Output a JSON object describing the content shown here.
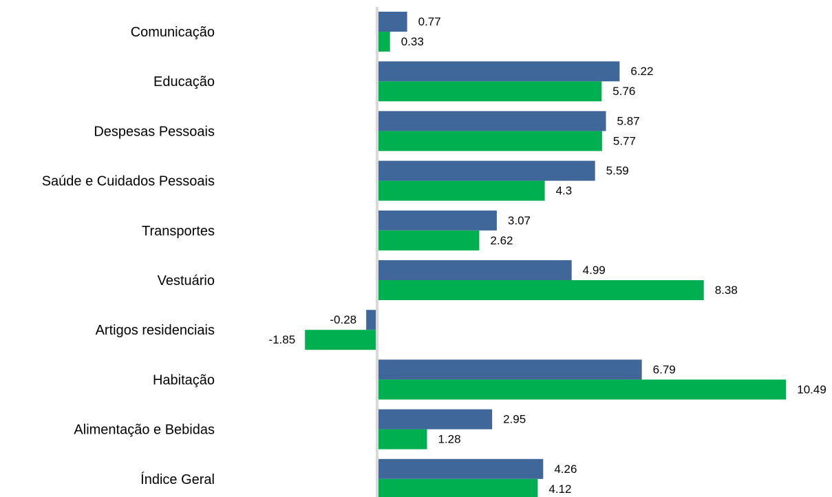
{
  "chart_data": {
    "type": "bar",
    "orientation": "horizontal",
    "categories": [
      "Comunicação",
      "Educação",
      "Despesas Pessoais",
      "Saúde e Cuidados Pessoais",
      "Transportes",
      "Vestuário",
      "Artigos residenciais",
      "Habitação",
      "Alimentação e Bebidas",
      "Índice Geral"
    ],
    "series": [
      {
        "values": [
          0.77,
          6.22,
          5.87,
          5.59,
          3.07,
          4.99,
          -0.28,
          6.79,
          2.95,
          4.26
        ],
        "color": "#3f6799"
      },
      {
        "values": [
          0.33,
          5.76,
          5.77,
          4.3,
          2.62,
          8.38,
          -1.85,
          10.49,
          1.28,
          4.12
        ],
        "color": "#00b050"
      }
    ],
    "value_labels": [
      [
        "0.77",
        "6.22",
        "5.87",
        "5.59",
        "3.07",
        "4.99",
        "-0.28",
        "6.79",
        "2.95",
        "4.26"
      ],
      [
        "0.33",
        "5.76",
        "5.77",
        "4.3",
        "2.62",
        "8.38",
        "-1.85",
        "10.49",
        "1.28",
        "4.12"
      ]
    ],
    "axis_line_color": "#d9d9d9",
    "grid": false,
    "legend": "none"
  }
}
